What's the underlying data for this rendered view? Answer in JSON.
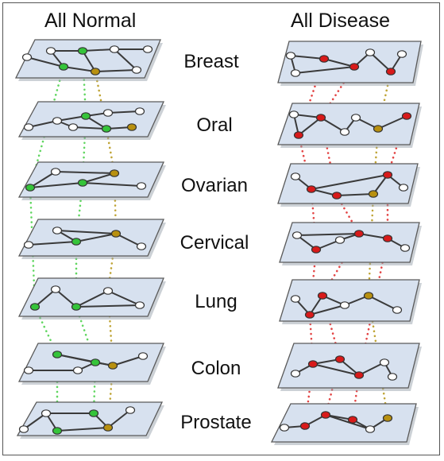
{
  "titles": {
    "normal": "All Normal",
    "disease": "All Disease"
  },
  "tissues": [
    "Breast",
    "Oral",
    "Ovarian",
    "Cervical",
    "Lung",
    "Colon",
    "Prostate"
  ],
  "colors": {
    "frame": "#555555",
    "plane_fill": "#d7e1ef",
    "plane_edge": "#5a5a5a",
    "node_default": "#ffffff",
    "node_normal_shared": "#35c43a",
    "node_disease_shared": "#d81a1a",
    "node_tissue_specific": "#b8900f",
    "link_normal": "#4fd24f",
    "link_disease": "#e03030",
    "link_tissue": "#b89a20",
    "edge": "#3a3a3a"
  }
}
